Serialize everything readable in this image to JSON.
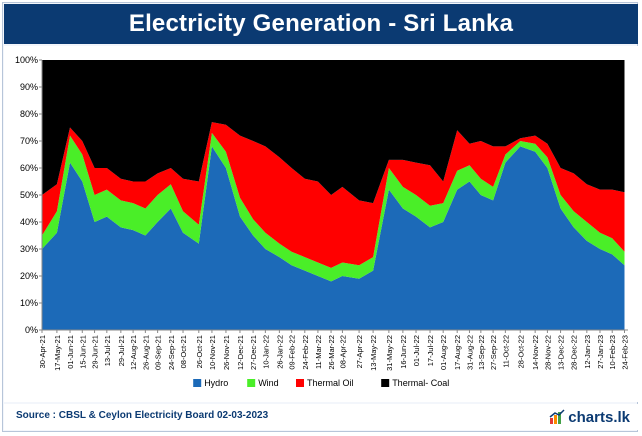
{
  "title": "Electricity Generation - Sri Lanka",
  "source": "Source : CBSL & Ceylon Electricity Board 02-03-2023",
  "brand": "charts.lk",
  "colors": {
    "hydro": "#1c6ab8",
    "wind": "#4aee28",
    "thermal_oil": "#ff0000",
    "thermal_coal": "#000000",
    "title_bg": "#0b3a72"
  },
  "chart_data": {
    "type": "area",
    "stacked": true,
    "ylabel": "",
    "xlabel": "",
    "y_ticks": [
      "0%",
      "10%",
      "20%",
      "30%",
      "40%",
      "50%",
      "60%",
      "70%",
      "80%",
      "90%",
      "100%"
    ],
    "ylim": [
      0,
      100
    ],
    "x_start": "2021-04-30",
    "x_end": "2023-02-28",
    "x_tick_labels": [
      "30-Apr-21",
      "17-May-21",
      "01-Jun-21",
      "15-Jun-21",
      "29-Jun-21",
      "13-Jul-21",
      "29-Jul-21",
      "12-Aug-21",
      "26-Aug-21",
      "09-Sep-21",
      "24-Sep-21",
      "08-Oct-21",
      "26-Oct-21",
      "10-Nov-21",
      "26-Nov-21",
      "12-Dec-21",
      "27-Dec-21",
      "10-Jan-22",
      "26-Jan-22",
      "09-Feb-22",
      "24-Feb-22",
      "11-Mar-22",
      "26-Mar-22",
      "08-Apr-22",
      "27-Apr-22",
      "13-May-22",
      "31-May-22",
      "16-Jun-22",
      "01-Jul-22",
      "17-Jul-22",
      "01-Aug-22",
      "17-Aug-22",
      "31-Aug-22",
      "13-Sep-22",
      "27-Sep-22",
      "11-Oct-22",
      "28-Oct-22",
      "14-Nov-22",
      "28-Nov-22",
      "13-Dec-22",
      "28-Dec-22",
      "12-Jan-23",
      "27-Jan-23",
      "10-Feb-23",
      "24-Feb-23"
    ],
    "x": [
      "2021-04-30",
      "2021-05-17",
      "2021-06-01",
      "2021-06-15",
      "2021-06-29",
      "2021-07-13",
      "2021-07-29",
      "2021-08-12",
      "2021-08-26",
      "2021-09-09",
      "2021-09-24",
      "2021-10-08",
      "2021-10-26",
      "2021-11-10",
      "2021-11-26",
      "2021-12-12",
      "2021-12-27",
      "2022-01-10",
      "2022-01-26",
      "2022-02-09",
      "2022-02-24",
      "2022-03-11",
      "2022-03-26",
      "2022-04-08",
      "2022-04-27",
      "2022-05-13",
      "2022-05-31",
      "2022-06-16",
      "2022-07-01",
      "2022-07-17",
      "2022-08-01",
      "2022-08-17",
      "2022-08-31",
      "2022-09-13",
      "2022-09-27",
      "2022-10-11",
      "2022-10-28",
      "2022-11-14",
      "2022-11-28",
      "2022-12-13",
      "2022-12-28",
      "2023-01-12",
      "2023-01-27",
      "2023-02-10",
      "2023-02-24"
    ],
    "series": [
      {
        "name": "Hydro",
        "color": "#1c6ab8",
        "values": [
          30,
          36,
          62,
          55,
          40,
          42,
          38,
          37,
          35,
          40,
          45,
          36,
          32,
          68,
          60,
          42,
          35,
          30,
          27,
          24,
          22,
          20,
          18,
          20,
          19,
          22,
          52,
          45,
          42,
          38,
          40,
          52,
          55,
          50,
          48,
          62,
          68,
          66,
          60,
          45,
          38,
          33,
          30,
          28,
          24
        ]
      },
      {
        "name": "Wind",
        "color": "#4aee28",
        "values": [
          5,
          8,
          10,
          10,
          10,
          10,
          10,
          10,
          10,
          10,
          9,
          8,
          7,
          5,
          6,
          7,
          6,
          6,
          5,
          5,
          5,
          5,
          5,
          5,
          5,
          5,
          8,
          8,
          8,
          8,
          7,
          7,
          6,
          6,
          5,
          3,
          2,
          3,
          4,
          5,
          6,
          7,
          6,
          6,
          5
        ]
      },
      {
        "name": "Thermal Oil",
        "color": "#ff0000",
        "values": [
          15,
          10,
          3,
          5,
          10,
          8,
          8,
          8,
          10,
          8,
          6,
          12,
          16,
          4,
          10,
          23,
          29,
          32,
          32,
          31,
          29,
          30,
          27,
          28,
          24,
          20,
          3,
          10,
          12,
          15,
          8,
          15,
          8,
          14,
          15,
          3,
          1,
          3,
          5,
          10,
          14,
          14,
          16,
          18,
          22
        ]
      },
      {
        "name": "Thermal- Coal",
        "color": "#000000",
        "values": [
          50,
          46,
          25,
          30,
          40,
          40,
          44,
          45,
          45,
          42,
          40,
          44,
          45,
          23,
          24,
          28,
          30,
          32,
          36,
          40,
          44,
          45,
          50,
          47,
          52,
          53,
          37,
          37,
          38,
          39,
          45,
          26,
          31,
          30,
          32,
          32,
          29,
          28,
          31,
          40,
          42,
          46,
          48,
          48,
          49
        ]
      }
    ],
    "legend": {
      "position": "bottom-center",
      "entries": [
        "Hydro",
        "Wind",
        "Thermal Oil",
        "Thermal- Coal"
      ]
    },
    "grid": false
  }
}
